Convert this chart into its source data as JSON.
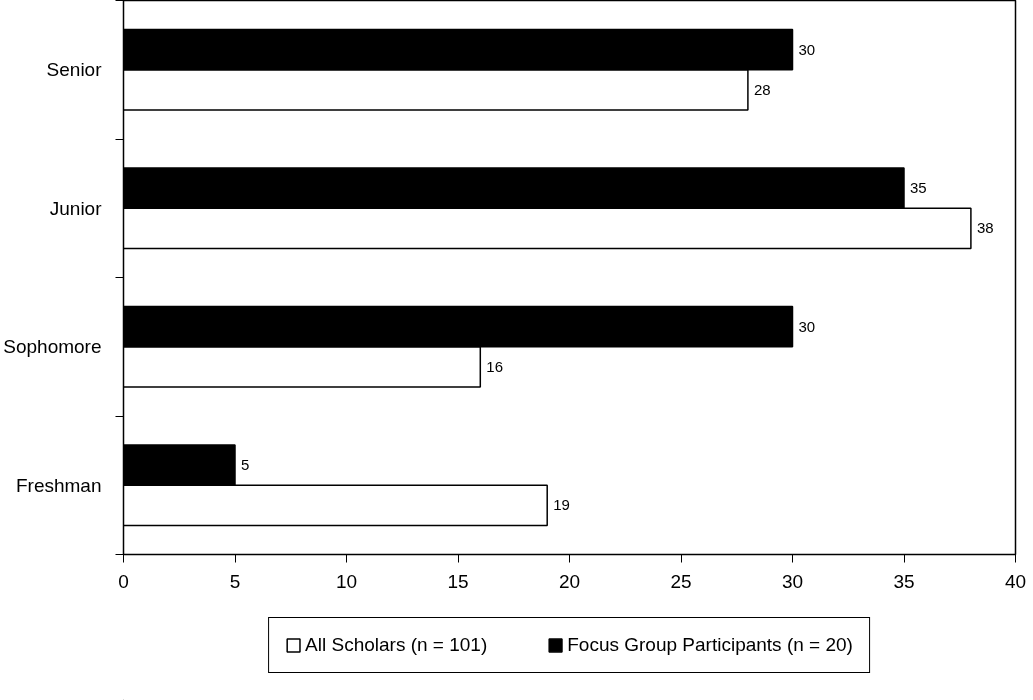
{
  "chart_data": {
    "type": "bar",
    "orientation": "horizontal",
    "categories": [
      "Senior",
      "Junior",
      "Sophomore",
      "Freshman"
    ],
    "series": [
      {
        "name": "All Scholars (n = 101)",
        "color": "#ffffff",
        "values": [
          28,
          38,
          16,
          19
        ]
      },
      {
        "name": "Focus Group Participants (n = 20)",
        "color": "#000000",
        "values": [
          30,
          35,
          30,
          5
        ]
      }
    ],
    "xlim": [
      0,
      40
    ],
    "xticks": [
      0,
      5,
      10,
      15,
      20,
      25,
      30,
      35,
      40
    ],
    "data_labels": true,
    "grid": false,
    "legend": "bottom"
  }
}
